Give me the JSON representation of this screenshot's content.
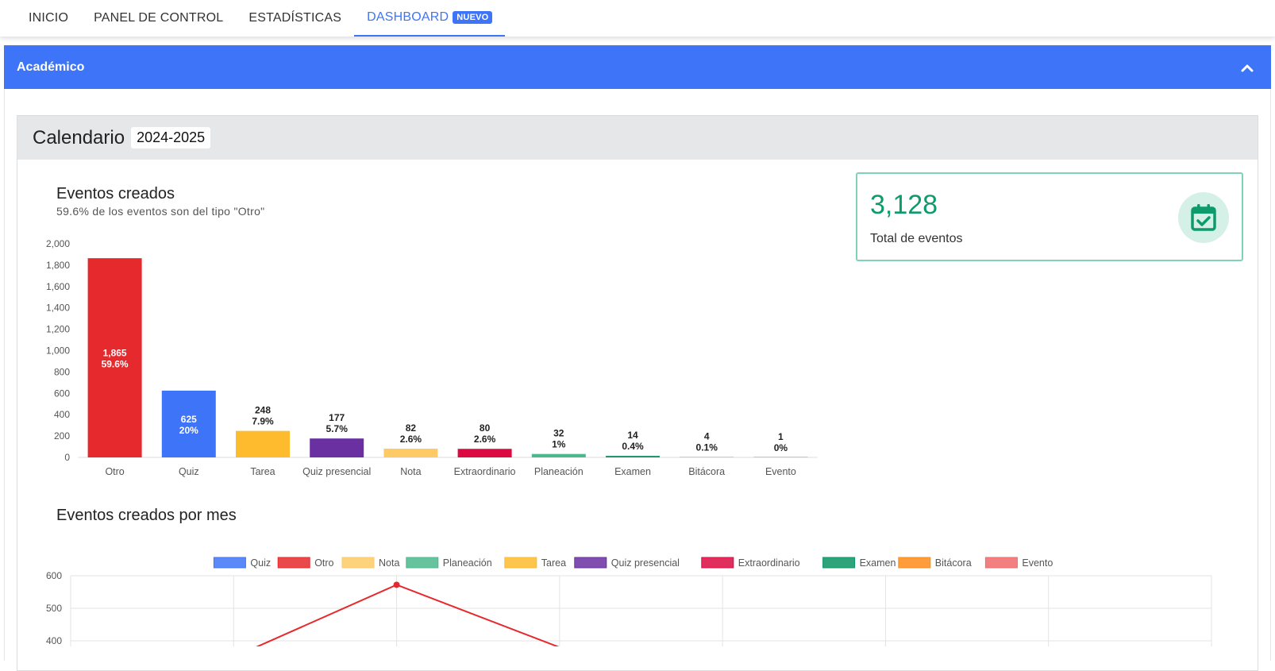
{
  "nav": {
    "items": [
      "INICIO",
      "PANEL DE CONTROL",
      "ESTADÍSTICAS",
      "DASHBOARD"
    ],
    "badge": "NUEVO"
  },
  "section": {
    "title": "Académico"
  },
  "card": {
    "title": "Calendario",
    "year": "2024-2025"
  },
  "stat": {
    "value": "3,128",
    "label": "Total de eventos",
    "icon": "calendar-check-icon",
    "accent": "#0e9b6c"
  },
  "chart_data": [
    {
      "type": "bar",
      "title": "Eventos creados",
      "subtitle": "59.6% de los eventos son del tipo \"Otro\"",
      "categories": [
        "Otro",
        "Quiz",
        "Tarea",
        "Quiz presencial",
        "Nota",
        "Extraordinario",
        "Planeación",
        "Examen",
        "Bitácora",
        "Evento"
      ],
      "values": [
        1865,
        625,
        248,
        177,
        82,
        80,
        32,
        14,
        4,
        1
      ],
      "percent_labels": [
        "59.6%",
        "20%",
        "7.9%",
        "5.7%",
        "2.6%",
        "2.6%",
        "1%",
        "0.4%",
        "0.1%",
        "0%"
      ],
      "value_labels": [
        "1,865",
        "625",
        "248",
        "177",
        "82",
        "80",
        "32",
        "14",
        "4",
        "1"
      ],
      "colors": [
        "#e6292c",
        "#3e74f7",
        "#fdbb2d",
        "#6a2fa0",
        "#fdca66",
        "#db0a40",
        "#4cb88d",
        "#0b9464",
        "#ff8c1a",
        "#f06a6a"
      ],
      "yticks": [
        "0",
        "200",
        "400",
        "600",
        "800",
        "1,000",
        "1,200",
        "1,400",
        "1,600",
        "1,800",
        "2,000"
      ],
      "ylim": [
        0,
        2000
      ],
      "grid": false
    },
    {
      "type": "line",
      "title": "Eventos creados por mes",
      "legend_position": "top",
      "series": [
        {
          "name": "Quiz",
          "color": "#3e74f7"
        },
        {
          "name": "Otro",
          "color": "#e6292c"
        },
        {
          "name": "Nota",
          "color": "#fdca66"
        },
        {
          "name": "Planeación",
          "color": "#4cb88d"
        },
        {
          "name": "Tarea",
          "color": "#fdbb2d"
        },
        {
          "name": "Quiz presencial",
          "color": "#6a2fa0"
        },
        {
          "name": "Extraordinario",
          "color": "#db0a40"
        },
        {
          "name": "Examen",
          "color": "#0b9464"
        },
        {
          "name": "Bitácora",
          "color": "#ff8c1a"
        },
        {
          "name": "Evento",
          "color": "#f06a6a"
        }
      ],
      "visible_yticks": [
        "600",
        "500",
        "400"
      ],
      "ylim": [
        0,
        600
      ],
      "otro_visible_points": [
        {
          "x": 1,
          "y": 350
        },
        {
          "x": 2,
          "y": 572
        },
        {
          "x": 3,
          "y": 380
        }
      ],
      "grid": true
    }
  ]
}
